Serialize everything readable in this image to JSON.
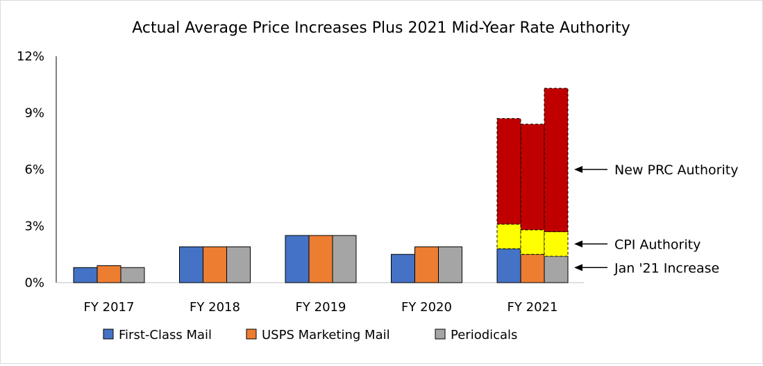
{
  "chart_data": {
    "type": "bar",
    "title": "Actual Average Price Increases Plus 2021 Mid-Year Rate Authority",
    "xlabel": "",
    "ylabel": "",
    "ylim": [
      0,
      12
    ],
    "y_ticks": [
      "0%",
      "3%",
      "6%",
      "9%",
      "12%"
    ],
    "y_tick_values": [
      0,
      3,
      6,
      9,
      12
    ],
    "grid": false,
    "legend_position": "bottom",
    "categories": [
      "FY 2017",
      "FY 2018",
      "FY 2019",
      "FY 2020",
      "FY 2021"
    ],
    "series": [
      {
        "name": "First-Class Mail",
        "color": "#4472c4",
        "values": [
          0.8,
          1.9,
          2.5,
          1.5,
          1.8
        ]
      },
      {
        "name": "USPS Marketing Mail",
        "color": "#ed7d31",
        "values": [
          0.9,
          1.9,
          2.5,
          1.9,
          1.5
        ]
      },
      {
        "name": "Periodicals",
        "color": "#a5a5a5",
        "values": [
          0.8,
          1.9,
          2.5,
          1.9,
          1.4
        ]
      }
    ],
    "stacked_additions": {
      "category": "FY 2021",
      "layers": [
        {
          "name": "CPI Authority",
          "color": "#ffff00",
          "values": [
            1.3,
            1.3,
            1.3
          ]
        },
        {
          "name": "New PRC Authority",
          "color": "#c00000",
          "values": [
            5.6,
            5.6,
            7.6
          ]
        }
      ]
    },
    "annotations": [
      {
        "text": "New PRC Authority",
        "arrow_at_value": 6.0
      },
      {
        "text": "CPI Authority",
        "arrow_at_value": 2.05
      },
      {
        "text": "Jan '21 Increase",
        "arrow_at_value": 0.8
      }
    ]
  }
}
